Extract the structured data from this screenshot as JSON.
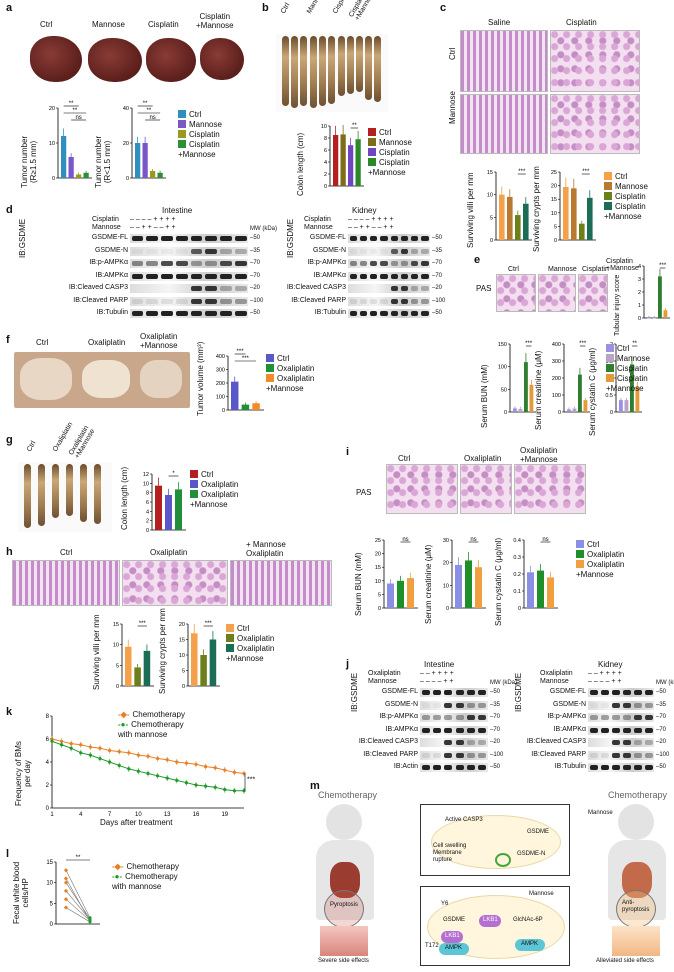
{
  "panels": {
    "a": {
      "label": "a",
      "groups": [
        "Ctrl",
        "Mannose",
        "Cisplatin",
        "Cisplatin\n+Mannose"
      ],
      "ylabel1": "Tumor number\n(R≥1.5 mm)",
      "ylabel2": "Tumor number\n(R<1.5 mm)",
      "sig1": [
        "**",
        "**",
        "ns"
      ],
      "sig2": [
        "**",
        "**",
        "ns"
      ],
      "legend": [
        "Ctrl",
        "Mannose",
        "Cisplatin",
        "Cisplatin\n+Mannose"
      ]
    },
    "b": {
      "label": "b",
      "groups": [
        "Ctrl",
        "Mannose",
        "Cisplatin",
        "Cisplatin\n+Mannose"
      ],
      "ylabel": "Colon length (cm)",
      "sig": "**",
      "legend": [
        "Ctrl",
        "Mannose",
        "Cisplatin",
        "Cisplatin\n+Mannose"
      ]
    },
    "c": {
      "label": "c",
      "cols": [
        "Saline",
        "Cisplatin"
      ],
      "rows": [
        "Ctrl",
        "Mannose"
      ],
      "ylabel1": "Surviving villi per mm",
      "ylabel2": "Surviving crypts per mm",
      "sig1": "***",
      "sig2": "***",
      "legend": [
        "Ctrl",
        "Mannose",
        "Cisplatin",
        "Cisplatin\n+Mannose"
      ]
    },
    "d": {
      "label": "d",
      "titles": [
        "Intestine",
        "Kidney"
      ],
      "rowlabels": [
        "Cisplatin",
        "Mannose"
      ],
      "plus_minus": [
        "– – – – + + + +",
        "– – + + – – + +"
      ],
      "side": "IB:GSDME",
      "mw": "MW (kDa)",
      "blots": [
        "GSDME-FL",
        "GSDME-N",
        "IB:p-AMPKα",
        "IB:AMPKα",
        "IB:Cleaved CASP3",
        "IB:Cleaved PARP",
        "IB:Tubulin"
      ],
      "mw_marks": [
        "50",
        "35",
        "70",
        "70",
        "20",
        "100",
        "50"
      ]
    },
    "e": {
      "label": "e",
      "groups": [
        "Ctrl",
        "Mannose",
        "Cisplatin",
        "Cisplatin\n+Mannose"
      ],
      "stain": "PAS",
      "score_label": "Tubular injury score",
      "score_sig": "***",
      "ylabels": [
        "Serum BUN (mM)",
        "Serum creatinine (μM)",
        "Serum cystatin C (μg/ml)"
      ],
      "sigs": [
        "***",
        "***",
        "**"
      ],
      "legend": [
        "Ctrl",
        "Mannose",
        "Cisplatin",
        "Cisplatin\n+Mannose"
      ]
    },
    "f": {
      "label": "f",
      "groups": [
        "Ctrl",
        "Oxaliplatin",
        "Oxaliplatin\n+Mannose"
      ],
      "ylabel": "Tumor volume (mm³)",
      "sigs": [
        "***",
        "***"
      ],
      "legend": [
        "Ctrl",
        "Oxaliplatin",
        "Oxaliplatin\n+Mannose"
      ]
    },
    "g": {
      "label": "g",
      "groups": [
        "Ctrl",
        "Oxaliplatin",
        "Oxaliplatin\n+Mannose"
      ],
      "ylabel": "Colon length (cm)",
      "sig": "*",
      "legend": [
        "Ctrl",
        "Oxaliplatin",
        "Oxaliplatin\n+Mannose"
      ]
    },
    "h": {
      "label": "h",
      "groups": [
        "Ctrl",
        "Oxaliplatin",
        "+ Mannose\nOxaliplatin"
      ],
      "ylabel1": "Surviving villi per mm",
      "ylabel2": "Surviving crypts per mm",
      "sigs": [
        "***",
        "***"
      ],
      "legend": [
        "Ctrl",
        "Oxaliplatin",
        "Oxaliplatin\n+Mannose"
      ]
    },
    "i": {
      "label": "i",
      "groups": [
        "Ctrl",
        "Oxaliplatin",
        "Oxaliplatin\n+Mannose"
      ],
      "stain": "PAS",
      "ylabels": [
        "Serum BUN (mM)",
        "Serum creatinine (μM)",
        "Serum cystatin C (μg/ml)"
      ],
      "sigs": [
        "ns",
        "ns",
        "ns"
      ],
      "legend": [
        "Ctrl",
        "Oxaliplatin",
        "Oxaliplatin\n+Mannose"
      ]
    },
    "j": {
      "label": "j",
      "titles": [
        "Intestine",
        "Kidney"
      ],
      "rowlabels": [
        "Oxaliplatin",
        "Mannose"
      ],
      "plus_minus": [
        "– – + + + +",
        "– – – – + +"
      ],
      "side": "IB:GSDME",
      "mw": "MW (kDa)",
      "blots_left": [
        "GSDME-FL",
        "GSDME-N",
        "IB:p-AMPKα",
        "IB:AMPKα",
        "IB:Cleaved CASP3",
        "IB:Cleaved PARP",
        "IB:Actin"
      ],
      "blots_right": [
        "GSDME-FL",
        "GSDME-N",
        "IB:p-AMPKα",
        "IB:AMPKα",
        "IB:Cleaved CASP3",
        "IB:Cleaved PARP",
        "IB:Tubulin"
      ],
      "mw_marks": [
        "50",
        "35",
        "70",
        "70",
        "20",
        "100",
        "50"
      ]
    },
    "k": {
      "label": "k",
      "ylabel": "Frequency of BMs\nper day",
      "xlabel": "Days after treatment",
      "sig": "***",
      "legend": [
        "Chemotherapy",
        "Chemotherapy\nwith mannose"
      ],
      "xticks": [
        "1",
        "4",
        "7",
        "10",
        "13",
        "16",
        "19"
      ]
    },
    "l": {
      "label": "l",
      "ylabel": "Fecal white blood\ncells/HP",
      "sig": "**",
      "legend": [
        "Chemotherapy",
        "Chemotherapy\nwith mannose"
      ]
    },
    "m": {
      "label": "m",
      "left_title": "Chemotherapy",
      "right_title": "Chemotherapy",
      "left_organ": "Pyroptosis",
      "right_organ": "Anti-\npyroptosis",
      "left_caption": "Severe side effects",
      "right_caption": "Alleviated side effects",
      "box1": {
        "active": "Active CASP3",
        "gsdme": "GSDME",
        "swelling": "Cell swelling\nMembrane\nrupture",
        "gsdmen": "GSDME-N"
      },
      "box2": {
        "mannose": "Mannose",
        "gsdme": "GSDME",
        "lkb1a": "LKB1",
        "lkb1b": "LKB1",
        "ampka": "AMPK",
        "ampkb": "AMPK",
        "glc": "GlcNAc-6P",
        "y6": "Y6",
        "t172": "T172"
      },
      "mannose_label": "Mannose"
    }
  },
  "chart_data": [
    {
      "type": "bar",
      "panel": "a",
      "categories": [
        "Ctrl",
        "Mannose",
        "Cisplatin",
        "Cisplatin+Mannose"
      ],
      "values": [
        12,
        6,
        1,
        1.5
      ],
      "ylabel": "Tumor number (R≥1.5 mm)",
      "ylim": [
        0,
        20
      ],
      "yticks": [
        0,
        10,
        20
      ]
    },
    {
      "type": "bar",
      "panel": "a2",
      "categories": [
        "Ctrl",
        "Mannose",
        "Cisplatin",
        "Cisplatin+Mannose"
      ],
      "values": [
        20,
        20,
        4,
        3
      ],
      "ylabel": "Tumor number (R<1.5 mm)",
      "ylim": [
        0,
        40
      ],
      "yticks": [
        0,
        20,
        40
      ]
    },
    {
      "type": "bar",
      "panel": "b",
      "categories": [
        "Ctrl",
        "Mannose",
        "Cisplatin",
        "Cisplatin+Mannose"
      ],
      "values": [
        8.5,
        8.6,
        6.8,
        7.8
      ],
      "ylabel": "Colon length (cm)",
      "ylim": [
        0,
        10
      ],
      "yticks": [
        0,
        2,
        4,
        6,
        8,
        10
      ]
    },
    {
      "type": "bar",
      "panel": "c1",
      "categories": [
        "Ctrl",
        "Mannose",
        "Cisplatin",
        "Cisplatin+Mannose"
      ],
      "values": [
        10,
        9.5,
        5.5,
        8
      ],
      "ylabel": "Surviving villi per mm",
      "ylim": [
        0,
        15
      ],
      "yticks": [
        0,
        5,
        10,
        15
      ]
    },
    {
      "type": "bar",
      "panel": "c2",
      "categories": [
        "Ctrl",
        "Mannose",
        "Cisplatin",
        "Cisplatin+Mannose"
      ],
      "values": [
        19.5,
        19,
        6,
        15.5
      ],
      "ylabel": "Surviving crypts per mm",
      "ylim": [
        0,
        25
      ],
      "yticks": [
        0,
        5,
        10,
        15,
        20,
        25
      ]
    },
    {
      "type": "bar",
      "panel": "e0",
      "categories": [
        "Ctrl",
        "Mannose",
        "Cisplatin",
        "Cisplatin+Mannose"
      ],
      "values": [
        0,
        0,
        3.2,
        0.6
      ],
      "ylabel": "Tubular injury score",
      "ylim": [
        0,
        4
      ],
      "yticks": [
        0,
        1,
        2,
        3,
        4
      ]
    },
    {
      "type": "bar",
      "panel": "e1",
      "categories": [
        "Ctrl",
        "Mannose",
        "Cisplatin",
        "Cisplatin+Mannose"
      ],
      "values": [
        8,
        7,
        110,
        60
      ],
      "ylabel": "Serum BUN (mM)",
      "ylim": [
        0,
        150
      ],
      "yticks": [
        0,
        50,
        100,
        150
      ]
    },
    {
      "type": "bar",
      "panel": "e2",
      "categories": [
        "Ctrl",
        "Mannose",
        "Cisplatin",
        "Cisplatin+Mannose"
      ],
      "values": [
        15,
        20,
        220,
        70
      ],
      "ylabel": "Serum creatinine (μM)",
      "ylim": [
        0,
        400
      ],
      "yticks": [
        0,
        100,
        200,
        300,
        400
      ]
    },
    {
      "type": "bar",
      "panel": "e3",
      "categories": [
        "Ctrl",
        "Mannose",
        "Cisplatin",
        "Cisplatin+Mannose"
      ],
      "values": [
        0.35,
        0.35,
        1.4,
        0.75
      ],
      "ylabel": "Serum cystatin C (μg/ml)",
      "ylim": [
        0,
        2.0
      ],
      "yticks": [
        0,
        0.5,
        1.0,
        1.5,
        2.0
      ]
    },
    {
      "type": "bar",
      "panel": "f",
      "categories": [
        "Ctrl",
        "Oxaliplatin",
        "Oxaliplatin+Mannose"
      ],
      "values": [
        210,
        40,
        50
      ],
      "ylabel": "Tumor volume (mm³)",
      "ylim": [
        0,
        400
      ],
      "yticks": [
        0,
        100,
        200,
        300,
        400
      ]
    },
    {
      "type": "bar",
      "panel": "g",
      "categories": [
        "Ctrl",
        "Oxaliplatin",
        "Oxaliplatin+Mannose"
      ],
      "values": [
        9.5,
        7.5,
        8.7
      ],
      "ylabel": "Colon length (cm)",
      "ylim": [
        0,
        12
      ],
      "yticks": [
        0,
        2,
        4,
        6,
        8,
        10,
        12
      ]
    },
    {
      "type": "bar",
      "panel": "h1",
      "categories": [
        "Ctrl",
        "Oxaliplatin",
        "Oxaliplatin+Mannose"
      ],
      "values": [
        9.5,
        4.5,
        8.5
      ],
      "ylabel": "Surviving villi per mm",
      "ylim": [
        0,
        15
      ],
      "yticks": [
        0,
        5,
        10,
        15
      ]
    },
    {
      "type": "bar",
      "panel": "h2",
      "categories": [
        "Ctrl",
        "Oxaliplatin",
        "Oxaliplatin+Mannose"
      ],
      "values": [
        17,
        10,
        15
      ],
      "ylabel": "Surviving crypts per mm",
      "ylim": [
        0,
        20
      ],
      "yticks": [
        0,
        5,
        10,
        15,
        20
      ]
    },
    {
      "type": "bar",
      "panel": "i1",
      "categories": [
        "Ctrl",
        "Oxaliplatin",
        "Oxaliplatin+Mannose"
      ],
      "values": [
        9,
        10,
        11
      ],
      "ylabel": "Serum BUN (mM)",
      "ylim": [
        0,
        25
      ],
      "yticks": [
        0,
        5,
        10,
        15,
        20,
        25
      ]
    },
    {
      "type": "bar",
      "panel": "i2",
      "categories": [
        "Ctrl",
        "Oxaliplatin",
        "Oxaliplatin+Mannose"
      ],
      "values": [
        19,
        21,
        18
      ],
      "ylabel": "Serum creatinine (μM)",
      "ylim": [
        0,
        30
      ],
      "yticks": [
        0,
        10,
        20,
        30
      ]
    },
    {
      "type": "bar",
      "panel": "i3",
      "categories": [
        "Ctrl",
        "Oxaliplatin",
        "Oxaliplatin+Mannose"
      ],
      "values": [
        0.21,
        0.22,
        0.18
      ],
      "ylabel": "Serum cystatin C (μg/ml)",
      "ylim": [
        0,
        0.4
      ],
      "yticks": [
        0,
        0.1,
        0.2,
        0.3,
        0.4
      ]
    },
    {
      "type": "line",
      "panel": "k",
      "x": [
        1,
        2,
        3,
        4,
        5,
        6,
        7,
        8,
        9,
        10,
        11,
        12,
        13,
        14,
        15,
        16,
        17,
        18,
        19,
        20,
        21
      ],
      "series": [
        {
          "name": "Chemotherapy",
          "values": [
            6,
            5.8,
            5.6,
            5.5,
            5.3,
            5.2,
            5.0,
            4.9,
            4.8,
            4.6,
            4.5,
            4.3,
            4.2,
            4.0,
            3.9,
            3.8,
            3.6,
            3.5,
            3.3,
            3.1,
            3.0
          ]
        },
        {
          "name": "Chemotherapy\nwith mannose",
          "values": [
            5.8,
            5.5,
            5.2,
            4.8,
            4.6,
            4.3,
            4.0,
            3.7,
            3.4,
            3.2,
            3.0,
            2.8,
            2.6,
            2.4,
            2.2,
            2.0,
            1.9,
            1.8,
            1.6,
            1.5,
            1.5
          ]
        }
      ],
      "xlabel": "Days after treatment",
      "ylim": [
        0,
        8
      ],
      "yticks": [
        0,
        2,
        4,
        6,
        8
      ]
    },
    {
      "type": "scatter",
      "panel": "l",
      "series": [
        {
          "name": "Chemotherapy",
          "values": [
            4,
            6,
            8,
            10,
            11,
            13
          ]
        },
        {
          "name": "Chemotherapy\nwith mannose",
          "values": [
            0.5,
            0.8,
            1,
            1.2,
            0.6,
            1.5
          ]
        }
      ],
      "ylim": [
        0,
        15
      ],
      "yticks": [
        0,
        5,
        10,
        15
      ]
    }
  ],
  "colors": {
    "ctrl4": "#2f8fc1",
    "mannose4": "#7a57c9",
    "cis4": "#9a9a22",
    "cismann4": "#2e8f3a",
    "b_ctrl": "#b3201f",
    "b_mann": "#7d6d1a",
    "b_cis": "#6f45c0",
    "b_cismann": "#2a8a2a",
    "c_ctrl": "#f5a04a",
    "c_mann": "#b77a2f",
    "c_cis": "#6d7f1a",
    "c_cismann": "#1b6e55",
    "e_ctrl": "#9f8fe0",
    "e_mann": "#b9a3c8",
    "e_cis": "#2f7d2f",
    "e_cismann": "#e39a3b",
    "ox_ctrl": "#5a57c9",
    "ox_ox": "#1f8f3a",
    "ox_mann": "#f08a2a",
    "g_ctrl": "#b3201f",
    "g_ox": "#5a57c9",
    "g_mann": "#1f8f3a",
    "h_ctrl": "#f5a04a",
    "h_ox": "#6d7f1a",
    "h_mann": "#1b6e55",
    "i_ctrl": "#8b8fe3",
    "i_ox": "#1f8f2a",
    "i_mann": "#f0a040",
    "chemo": "#e87f22",
    "chemo_mann": "#1f9a2a"
  }
}
